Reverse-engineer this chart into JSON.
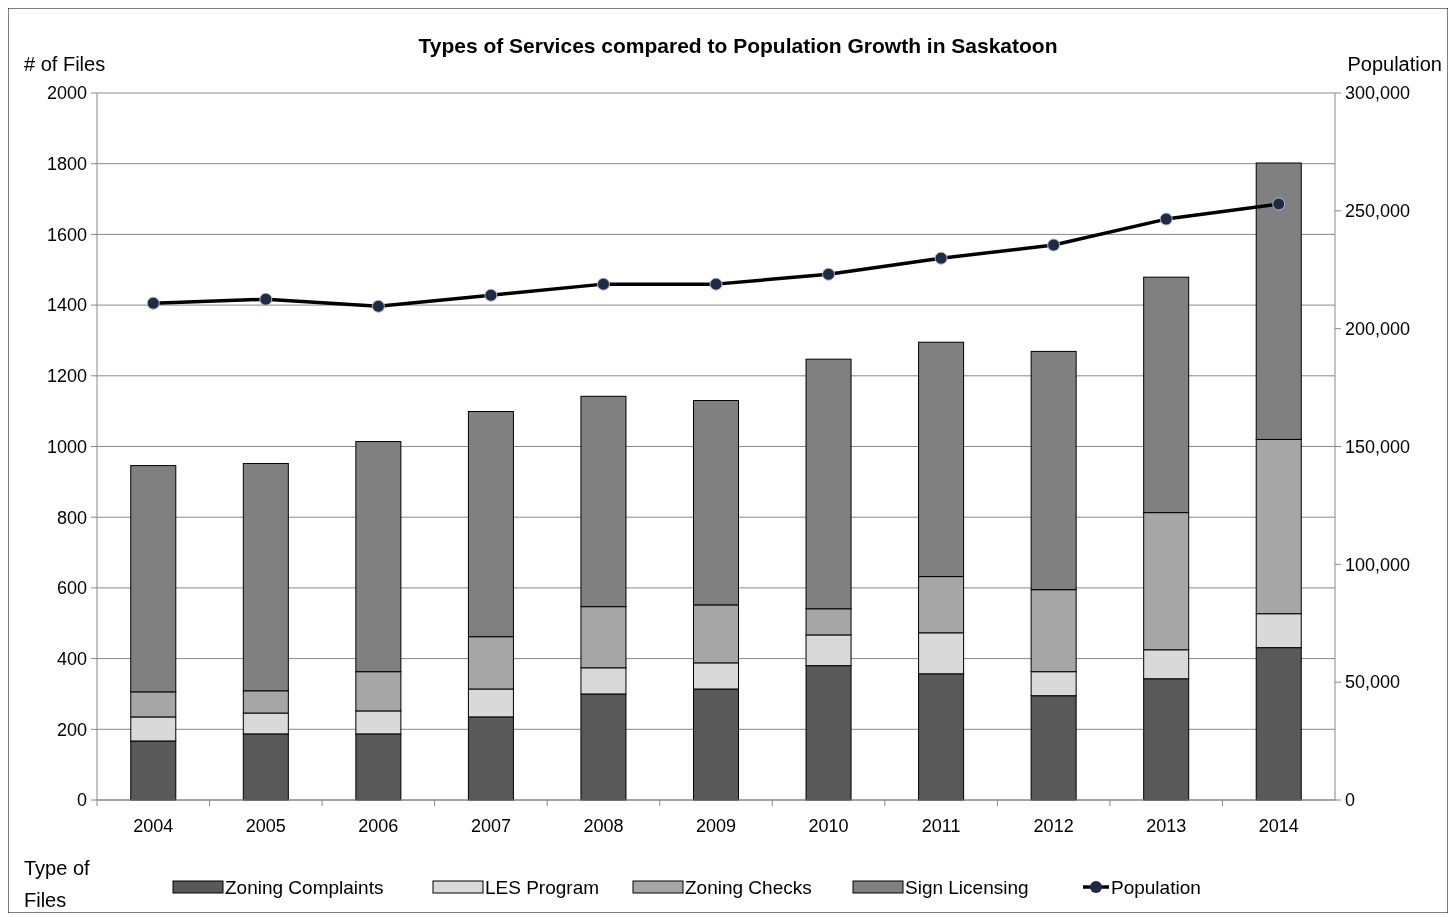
{
  "chart_data": {
    "type": "bar",
    "stacked": true,
    "title": "Types of Services compared to Population Growth in Saskatoon",
    "ylabel": "# of Files",
    "y2label": "Population",
    "legend_title": "Type of Files",
    "categories": [
      "2004",
      "2005",
      "2006",
      "2007",
      "2008",
      "2009",
      "2010",
      "2011",
      "2012",
      "2013",
      "2014"
    ],
    "series": [
      {
        "name": "Zoning Complaints",
        "color": "#595959",
        "values": [
          167,
          187,
          187,
          235,
          300,
          314,
          380,
          357,
          295,
          343,
          431
        ]
      },
      {
        "name": "LES Program",
        "color": "#d9d9d9",
        "values": [
          68,
          59,
          65,
          79,
          74,
          74,
          87,
          116,
          68,
          82,
          96
        ]
      },
      {
        "name": "Zoning Checks",
        "color": "#a6a6a6",
        "values": [
          71,
          63,
          111,
          148,
          173,
          164,
          74,
          159,
          232,
          388,
          493
        ]
      },
      {
        "name": "Sign Licensing",
        "color": "#808080",
        "values": [
          640,
          643,
          651,
          637,
          595,
          578,
          706,
          663,
          674,
          666,
          782
        ]
      },
      {
        "name": "Population",
        "type": "line",
        "axis": "y2",
        "color": "#000000",
        "marker": "circle",
        "values": [
          210800,
          212500,
          209500,
          214200,
          218900,
          218900,
          223100,
          229900,
          235500,
          246500,
          252900
        ]
      }
    ],
    "ylim": [
      0,
      2000
    ],
    "yticks": [
      0,
      200,
      400,
      600,
      800,
      1000,
      1200,
      1400,
      1600,
      1800,
      2000
    ],
    "y2lim": [
      0,
      300000
    ],
    "y2ticks": [
      {
        "value": 0,
        "label": "0"
      },
      {
        "value": 50000,
        "label": "50,000"
      },
      {
        "value": 100000,
        "label": "100,000"
      },
      {
        "value": 150000,
        "label": "150,000"
      },
      {
        "value": 200000,
        "label": "200,000"
      },
      {
        "value": 250000,
        "label": "250,000"
      },
      {
        "value": 300000,
        "label": "300,000"
      }
    ],
    "grid": "y",
    "legend": "bottom"
  }
}
